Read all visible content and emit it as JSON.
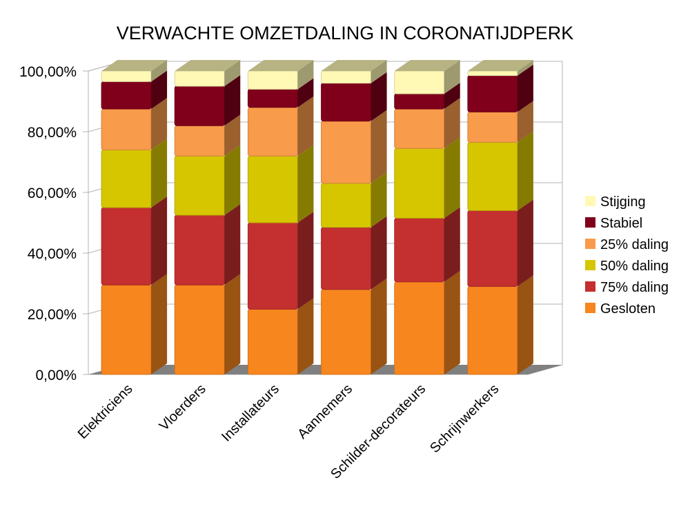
{
  "chart_data": {
    "type": "bar",
    "stacked": true,
    "style": "3d",
    "title": "VERWACHTE OMZETDALING IN CORONATIJDPERK",
    "xlabel": "",
    "ylabel": "",
    "ylim": [
      0,
      100
    ],
    "y_ticks": [
      "0,00%",
      "20,00%",
      "40,00%",
      "60,00%",
      "80,00%",
      "100,00%"
    ],
    "y_tick_values": [
      0,
      20,
      40,
      60,
      80,
      100
    ],
    "grid": true,
    "legend_position": "right",
    "categories": [
      "Elektriciens",
      "Vloerders",
      "Installateurs",
      "Aannemers",
      "Schilder-decorateurs",
      "Schrijnwerkers"
    ],
    "series": [
      {
        "name": "Gesloten",
        "color": "#f7861f",
        "values": [
          29.5,
          29.5,
          21.5,
          28,
          30.5,
          29
        ]
      },
      {
        "name": "75% daling",
        "color": "#c42f2f",
        "values": [
          25.5,
          23,
          28.5,
          20.5,
          21,
          25
        ]
      },
      {
        "name": "50% daling",
        "color": "#d6c600",
        "values": [
          19,
          19.5,
          22,
          14.5,
          23,
          22.5
        ]
      },
      {
        "name": "25% daling",
        "color": "#f89b4a",
        "values": [
          13.5,
          10,
          16,
          20.5,
          13,
          10
        ]
      },
      {
        "name": "Stabiel",
        "color": "#80001b",
        "values": [
          9,
          13,
          6,
          12.5,
          5,
          12
        ]
      },
      {
        "name": "Stijging",
        "color": "#fff9b5",
        "values": [
          3.5,
          5,
          6,
          4,
          7.5,
          1.5
        ]
      }
    ],
    "legend_order": [
      "Stijging",
      "Stabiel",
      "25% daling",
      "50% daling",
      "75% daling",
      "Gesloten"
    ]
  }
}
